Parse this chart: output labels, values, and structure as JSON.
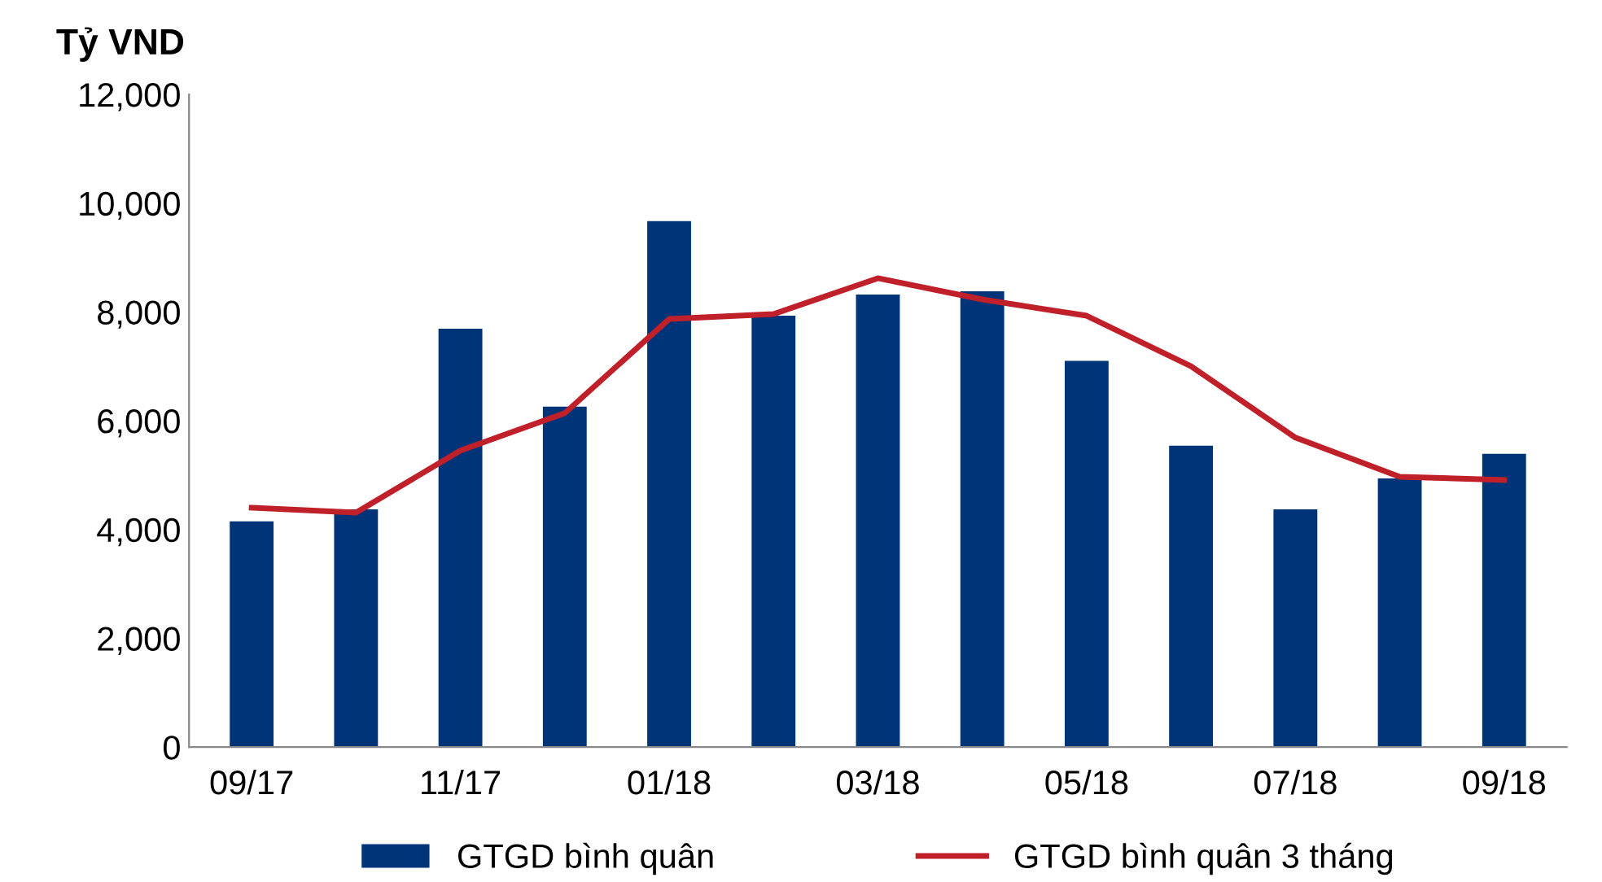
{
  "chart_data": {
    "type": "bar",
    "ylabel": "Tỷ VND",
    "categories": [
      "09/17",
      null,
      "11/17",
      null,
      "01/18",
      null,
      "03/18",
      null,
      "05/18",
      null,
      "07/18",
      null,
      "09/18"
    ],
    "series": [
      {
        "name": "GTGD bình quân",
        "color": "#003478",
        "values": [
          4150,
          4370,
          7690,
          6260,
          9670,
          7930,
          8320,
          8380,
          7100,
          5540,
          4370,
          4940,
          5390
        ]
      },
      {
        "name": "GTGD bình quân 3 tháng",
        "type": "line",
        "color": "#c0202a",
        "values": [
          4400,
          4310,
          5450,
          6140,
          7870,
          7960,
          8620,
          8230,
          7930,
          7000,
          5690,
          4970,
          4910
        ]
      }
    ],
    "ylim": [
      0,
      12000
    ],
    "yticks": [
      {
        "value": 0,
        "label": "0"
      },
      {
        "value": 2000,
        "label": "2,000"
      },
      {
        "value": 4000,
        "label": "4,000"
      },
      {
        "value": 6000,
        "label": "6,000"
      },
      {
        "value": 8000,
        "label": "8,000"
      },
      {
        "value": 10000,
        "label": "10,000"
      },
      {
        "value": 12000,
        "label": "12,000"
      }
    ],
    "grid": false,
    "legend": "bottom",
    "marker": "none",
    "line_style": "solid"
  }
}
